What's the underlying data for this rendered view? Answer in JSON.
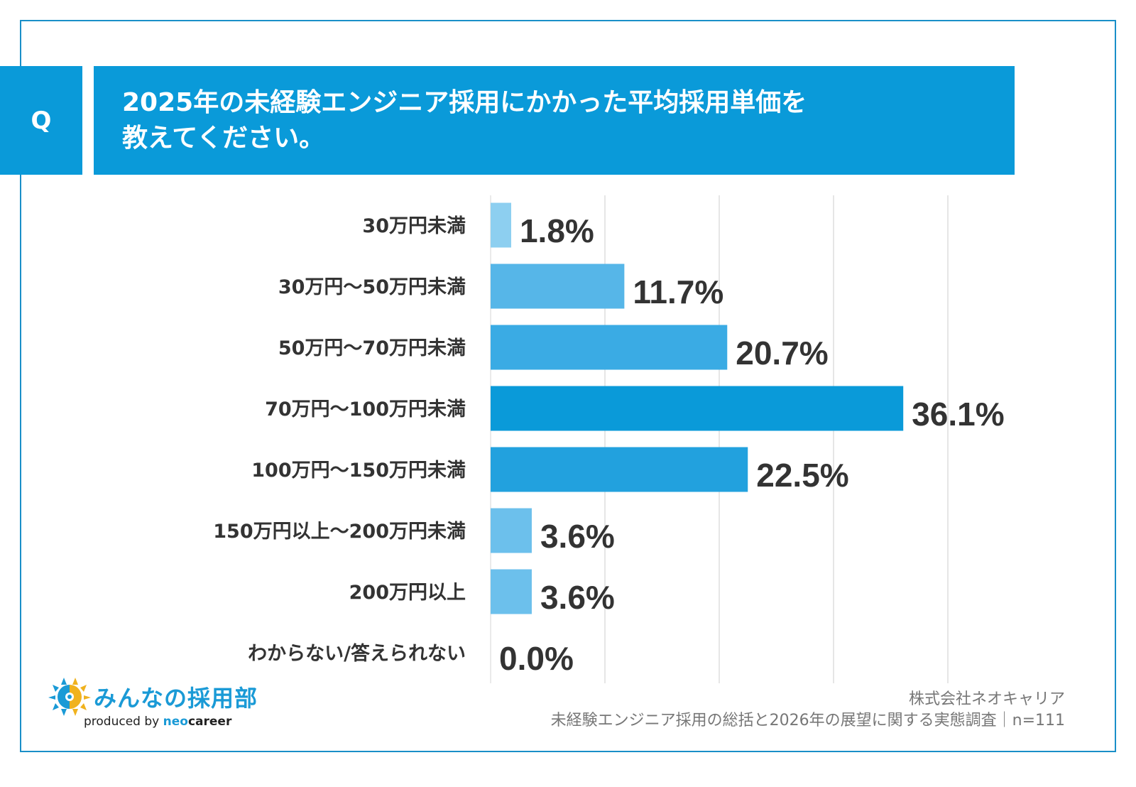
{
  "header": {
    "q_label": "Q",
    "title_line1": "2025年の未経験エンジニア採用にかかった平均採用単価を",
    "title_line2": "教えてください。"
  },
  "colors": {
    "frame": "#1a8fc8",
    "header_bg": "#0a9ad9",
    "text": "#333333",
    "grid": "#dddddd"
  },
  "chart_data": {
    "type": "bar",
    "orientation": "horizontal",
    "title": "2025年の未経験エンジニア採用にかかった平均採用単価を教えてください。",
    "categories": [
      "30万円未満",
      "30万円～50万円未満",
      "50万円～70万円未満",
      "70万円～100万円未満",
      "100万円～150万円未満",
      "150万円以上～200万円未満",
      "200万円以上",
      "わからない/答えられない"
    ],
    "values": [
      1.8,
      11.7,
      20.7,
      36.1,
      22.5,
      3.6,
      3.6,
      0.0
    ],
    "value_labels": [
      "1.8%",
      "11.7%",
      "20.7%",
      "36.1%",
      "22.5%",
      "3.6%",
      "3.6%",
      "0.0%"
    ],
    "bar_colors": [
      "#8dcff0",
      "#56b6e8",
      "#3aabe4",
      "#0a9ad9",
      "#22a1de",
      "#6cc0ec",
      "#6cc0ec",
      "#8dcff0"
    ],
    "xlim": [
      0,
      40
    ],
    "gridlines": [
      10,
      20,
      30,
      40
    ],
    "grid": true,
    "xlabel": "",
    "ylabel": ""
  },
  "logo": {
    "name": "みんなの採用部",
    "produced_by": "produced by",
    "brand_neo": "neo",
    "brand_career": "career"
  },
  "source": {
    "company": "株式会社ネオキャリア",
    "survey": "未経験エンジニア採用の総括と2026年の展望に関する実態調査｜n=111"
  }
}
